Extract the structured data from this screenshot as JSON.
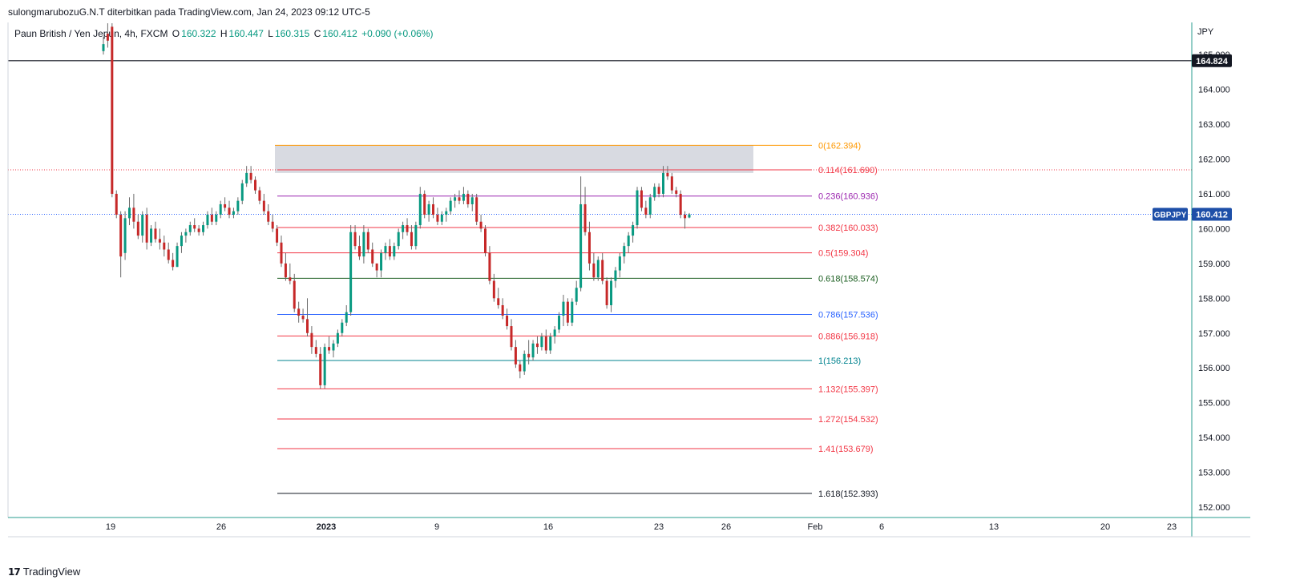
{
  "header": {
    "publisher_line": "sulongmarubozuG.N.T diterbitkan pada TradingView.com, Jan 24, 2023 09:12 UTC-5"
  },
  "legend": {
    "symbol_desc": "Paun British / Yen Jepun, 4h, FXCM",
    "open_label": "O",
    "open": "160.322",
    "high_label": "H",
    "high": "160.447",
    "low_label": "L",
    "low": "160.315",
    "close_label": "C",
    "close": "160.412",
    "change": "+0.090 (+0.06%)"
  },
  "footer": {
    "brand_mark": "17",
    "brand": "TradingView"
  },
  "chart_data": {
    "type": "candlestick",
    "symbol": "GBPJPY",
    "currency": "JPY",
    "y_range": [
      151.6,
      165.9
    ],
    "y_ticks": [
      "152.000",
      "153.000",
      "154.000",
      "155.000",
      "156.000",
      "157.000",
      "158.000",
      "159.000",
      "160.000",
      "161.000",
      "162.000",
      "163.000",
      "164.000",
      "165.000"
    ],
    "x_ticks": [
      "19",
      "26",
      "2023",
      "9",
      "16",
      "23",
      "26",
      "Feb",
      "6",
      "13",
      "20",
      "23"
    ],
    "price_labels": {
      "horizontal_level": "164.824",
      "last_price": "160.412",
      "last_symbol": "GBPJPY"
    },
    "horizontal_level": 164.824,
    "last_price": 160.412,
    "resistance_zone": {
      "from": 161.6,
      "to": 162.394,
      "color": "#d1d4dc"
    },
    "fib_levels": [
      {
        "label": "0(162.394)",
        "ratio": 0,
        "price": 162.394,
        "color": "#ff9800"
      },
      {
        "label": "0.114(161.690)",
        "ratio": 0.114,
        "price": 161.69,
        "color": "#f23645"
      },
      {
        "label": "0.236(160.936)",
        "ratio": 0.236,
        "price": 160.936,
        "color": "#9c27b0"
      },
      {
        "label": "0.382(160.033)",
        "ratio": 0.382,
        "price": 160.033,
        "color": "#f23645"
      },
      {
        "label": "0.5(159.304)",
        "ratio": 0.5,
        "price": 159.304,
        "color": "#f23645"
      },
      {
        "label": "0.618(158.574)",
        "ratio": 0.618,
        "price": 158.574,
        "color": "#1b5e20"
      },
      {
        "label": "0.786(157.536)",
        "ratio": 0.786,
        "price": 157.536,
        "color": "#2962ff"
      },
      {
        "label": "0.886(156.918)",
        "ratio": 0.886,
        "price": 156.918,
        "color": "#f23645"
      },
      {
        "label": "1(156.213)",
        "ratio": 1,
        "price": 156.213,
        "color": "#00838f"
      },
      {
        "label": "1.132(155.397)",
        "ratio": 1.132,
        "price": 155.397,
        "color": "#f23645"
      },
      {
        "label": "1.272(154.532)",
        "ratio": 1.272,
        "price": 154.532,
        "color": "#f23645"
      },
      {
        "label": "1.41(153.679)",
        "ratio": 1.41,
        "price": 153.679,
        "color": "#f23645"
      },
      {
        "label": "1.618(152.393)",
        "ratio": 1.618,
        "price": 152.393,
        "color": "#131722"
      }
    ],
    "colors": {
      "up": "#089981",
      "down": "#c62828",
      "wick": "#6b6b6b",
      "grid_border": "#b2b5be"
    },
    "candles": [
      {
        "o": 165.1,
        "h": 165.5,
        "l": 165.0,
        "c": 165.3
      },
      {
        "o": 165.6,
        "h": 165.9,
        "l": 165.2,
        "c": 165.4
      },
      {
        "o": 165.8,
        "h": 165.9,
        "l": 160.9,
        "c": 161.0
      },
      {
        "o": 161.0,
        "h": 161.1,
        "l": 160.3,
        "c": 160.4
      },
      {
        "o": 160.4,
        "h": 160.5,
        "l": 158.6,
        "c": 159.2
      },
      {
        "o": 159.3,
        "h": 160.5,
        "l": 159.1,
        "c": 160.3
      },
      {
        "o": 160.3,
        "h": 160.9,
        "l": 160.1,
        "c": 160.6
      },
      {
        "o": 160.6,
        "h": 161.0,
        "l": 160.0,
        "c": 160.2
      },
      {
        "o": 160.2,
        "h": 160.4,
        "l": 159.7,
        "c": 159.8
      },
      {
        "o": 159.8,
        "h": 160.5,
        "l": 159.6,
        "c": 160.4
      },
      {
        "o": 160.4,
        "h": 160.6,
        "l": 159.4,
        "c": 159.6
      },
      {
        "o": 159.6,
        "h": 160.1,
        "l": 159.5,
        "c": 160.0
      },
      {
        "o": 160.0,
        "h": 160.2,
        "l": 159.6,
        "c": 159.7
      },
      {
        "o": 159.7,
        "h": 160.0,
        "l": 159.4,
        "c": 159.6
      },
      {
        "o": 159.6,
        "h": 159.8,
        "l": 159.2,
        "c": 159.4
      },
      {
        "o": 159.4,
        "h": 159.6,
        "l": 159.0,
        "c": 159.1
      },
      {
        "o": 159.1,
        "h": 159.3,
        "l": 158.8,
        "c": 158.9
      },
      {
        "o": 158.9,
        "h": 159.6,
        "l": 158.9,
        "c": 159.5
      },
      {
        "o": 159.5,
        "h": 159.9,
        "l": 159.3,
        "c": 159.8
      },
      {
        "o": 159.8,
        "h": 160.0,
        "l": 159.6,
        "c": 159.9
      },
      {
        "o": 159.9,
        "h": 160.2,
        "l": 159.8,
        "c": 160.1
      },
      {
        "o": 160.1,
        "h": 160.3,
        "l": 159.9,
        "c": 160.0
      },
      {
        "o": 160.0,
        "h": 160.1,
        "l": 159.8,
        "c": 159.9
      },
      {
        "o": 159.9,
        "h": 160.2,
        "l": 159.8,
        "c": 160.1
      },
      {
        "o": 160.1,
        "h": 160.5,
        "l": 160.0,
        "c": 160.4
      },
      {
        "o": 160.4,
        "h": 160.6,
        "l": 160.1,
        "c": 160.2
      },
      {
        "o": 160.2,
        "h": 160.5,
        "l": 160.1,
        "c": 160.4
      },
      {
        "o": 160.4,
        "h": 160.8,
        "l": 160.3,
        "c": 160.7
      },
      {
        "o": 160.7,
        "h": 160.9,
        "l": 160.5,
        "c": 160.6
      },
      {
        "o": 160.6,
        "h": 160.8,
        "l": 160.3,
        "c": 160.4
      },
      {
        "o": 160.4,
        "h": 160.6,
        "l": 160.3,
        "c": 160.5
      },
      {
        "o": 160.5,
        "h": 160.9,
        "l": 160.4,
        "c": 160.8
      },
      {
        "o": 160.8,
        "h": 161.4,
        "l": 160.7,
        "c": 161.3
      },
      {
        "o": 161.3,
        "h": 161.8,
        "l": 161.2,
        "c": 161.6
      },
      {
        "o": 161.6,
        "h": 161.8,
        "l": 161.3,
        "c": 161.4
      },
      {
        "o": 161.4,
        "h": 161.5,
        "l": 161.0,
        "c": 161.1
      },
      {
        "o": 161.1,
        "h": 161.2,
        "l": 160.7,
        "c": 160.8
      },
      {
        "o": 160.8,
        "h": 161.0,
        "l": 160.4,
        "c": 160.5
      },
      {
        "o": 160.5,
        "h": 160.7,
        "l": 160.1,
        "c": 160.2
      },
      {
        "o": 160.2,
        "h": 160.4,
        "l": 159.9,
        "c": 160.0
      },
      {
        "o": 160.0,
        "h": 160.1,
        "l": 159.5,
        "c": 159.6
      },
      {
        "o": 159.6,
        "h": 159.8,
        "l": 158.9,
        "c": 159.0
      },
      {
        "o": 159.0,
        "h": 159.3,
        "l": 158.5,
        "c": 158.6
      },
      {
        "o": 158.6,
        "h": 159.0,
        "l": 158.4,
        "c": 158.5
      },
      {
        "o": 158.5,
        "h": 158.7,
        "l": 157.6,
        "c": 157.7
      },
      {
        "o": 157.7,
        "h": 157.9,
        "l": 157.3,
        "c": 157.5
      },
      {
        "o": 157.5,
        "h": 157.7,
        "l": 157.3,
        "c": 157.4
      },
      {
        "o": 157.4,
        "h": 158.0,
        "l": 156.9,
        "c": 157.0
      },
      {
        "o": 157.0,
        "h": 157.2,
        "l": 156.4,
        "c": 156.6
      },
      {
        "o": 156.6,
        "h": 156.8,
        "l": 156.3,
        "c": 156.4
      },
      {
        "o": 156.4,
        "h": 156.6,
        "l": 155.4,
        "c": 155.5
      },
      {
        "o": 155.5,
        "h": 156.7,
        "l": 155.4,
        "c": 156.6
      },
      {
        "o": 156.6,
        "h": 156.9,
        "l": 156.4,
        "c": 156.5
      },
      {
        "o": 156.5,
        "h": 156.8,
        "l": 156.3,
        "c": 156.7
      },
      {
        "o": 156.7,
        "h": 157.1,
        "l": 156.6,
        "c": 157.0
      },
      {
        "o": 157.0,
        "h": 157.4,
        "l": 156.9,
        "c": 157.3
      },
      {
        "o": 157.3,
        "h": 157.8,
        "l": 157.2,
        "c": 157.6
      },
      {
        "o": 157.6,
        "h": 160.1,
        "l": 157.5,
        "c": 159.9
      },
      {
        "o": 159.9,
        "h": 160.1,
        "l": 159.4,
        "c": 159.5
      },
      {
        "o": 159.5,
        "h": 159.8,
        "l": 159.1,
        "c": 159.2
      },
      {
        "o": 159.2,
        "h": 160.1,
        "l": 159.0,
        "c": 159.9
      },
      {
        "o": 159.9,
        "h": 160.0,
        "l": 159.3,
        "c": 159.4
      },
      {
        "o": 159.4,
        "h": 159.6,
        "l": 158.9,
        "c": 159.0
      },
      {
        "o": 159.0,
        "h": 158.9,
        "l": 158.6,
        "c": 158.8
      },
      {
        "o": 158.8,
        "h": 159.4,
        "l": 158.6,
        "c": 159.3
      },
      {
        "o": 159.3,
        "h": 159.6,
        "l": 159.1,
        "c": 159.5
      },
      {
        "o": 159.5,
        "h": 159.7,
        "l": 159.1,
        "c": 159.2
      },
      {
        "o": 159.2,
        "h": 159.6,
        "l": 159.1,
        "c": 159.5
      },
      {
        "o": 159.5,
        "h": 160.0,
        "l": 159.4,
        "c": 159.9
      },
      {
        "o": 159.9,
        "h": 160.2,
        "l": 159.7,
        "c": 160.1
      },
      {
        "o": 160.1,
        "h": 160.3,
        "l": 159.8,
        "c": 159.9
      },
      {
        "o": 159.9,
        "h": 160.1,
        "l": 159.4,
        "c": 159.5
      },
      {
        "o": 159.5,
        "h": 160.2,
        "l": 159.4,
        "c": 160.1
      },
      {
        "o": 160.1,
        "h": 161.2,
        "l": 160.0,
        "c": 161.0
      },
      {
        "o": 161.0,
        "h": 161.1,
        "l": 160.3,
        "c": 160.4
      },
      {
        "o": 160.4,
        "h": 160.8,
        "l": 160.2,
        "c": 160.7
      },
      {
        "o": 160.7,
        "h": 160.9,
        "l": 160.3,
        "c": 160.4
      },
      {
        "o": 160.4,
        "h": 160.6,
        "l": 160.1,
        "c": 160.2
      },
      {
        "o": 160.2,
        "h": 160.5,
        "l": 160.1,
        "c": 160.4
      },
      {
        "o": 160.4,
        "h": 160.6,
        "l": 160.2,
        "c": 160.5
      },
      {
        "o": 160.5,
        "h": 160.9,
        "l": 160.4,
        "c": 160.8
      },
      {
        "o": 160.8,
        "h": 161.0,
        "l": 160.6,
        "c": 160.9
      },
      {
        "o": 160.9,
        "h": 161.1,
        "l": 160.7,
        "c": 160.8
      },
      {
        "o": 160.8,
        "h": 161.2,
        "l": 160.7,
        "c": 161.0
      },
      {
        "o": 161.0,
        "h": 161.1,
        "l": 160.6,
        "c": 160.7
      },
      {
        "o": 160.7,
        "h": 161.0,
        "l": 160.5,
        "c": 160.9
      },
      {
        "o": 160.9,
        "h": 161.0,
        "l": 160.1,
        "c": 160.2
      },
      {
        "o": 160.2,
        "h": 160.4,
        "l": 159.9,
        "c": 160.0
      },
      {
        "o": 160.0,
        "h": 160.1,
        "l": 159.2,
        "c": 159.3
      },
      {
        "o": 159.3,
        "h": 159.5,
        "l": 158.4,
        "c": 158.5
      },
      {
        "o": 158.5,
        "h": 158.7,
        "l": 157.9,
        "c": 158.0
      },
      {
        "o": 158.0,
        "h": 158.3,
        "l": 157.7,
        "c": 157.8
      },
      {
        "o": 157.8,
        "h": 158.0,
        "l": 157.4,
        "c": 157.5
      },
      {
        "o": 157.5,
        "h": 157.7,
        "l": 157.1,
        "c": 157.2
      },
      {
        "o": 157.2,
        "h": 157.4,
        "l": 156.5,
        "c": 156.6
      },
      {
        "o": 156.6,
        "h": 156.8,
        "l": 156.0,
        "c": 156.1
      },
      {
        "o": 156.1,
        "h": 156.2,
        "l": 155.7,
        "c": 155.9
      },
      {
        "o": 155.9,
        "h": 156.5,
        "l": 155.8,
        "c": 156.4
      },
      {
        "o": 156.4,
        "h": 156.8,
        "l": 156.1,
        "c": 156.3
      },
      {
        "o": 156.3,
        "h": 156.8,
        "l": 156.2,
        "c": 156.7
      },
      {
        "o": 156.7,
        "h": 156.9,
        "l": 156.4,
        "c": 156.6
      },
      {
        "o": 156.6,
        "h": 157.0,
        "l": 156.5,
        "c": 156.9
      },
      {
        "o": 156.9,
        "h": 157.1,
        "l": 156.4,
        "c": 156.5
      },
      {
        "o": 156.5,
        "h": 157.0,
        "l": 156.4,
        "c": 156.9
      },
      {
        "o": 156.9,
        "h": 157.2,
        "l": 156.7,
        "c": 157.1
      },
      {
        "o": 157.1,
        "h": 157.6,
        "l": 157.0,
        "c": 157.5
      },
      {
        "o": 157.5,
        "h": 158.1,
        "l": 157.2,
        "c": 157.9
      },
      {
        "o": 157.9,
        "h": 158.0,
        "l": 157.2,
        "c": 157.3
      },
      {
        "o": 157.3,
        "h": 158.0,
        "l": 157.2,
        "c": 157.9
      },
      {
        "o": 157.9,
        "h": 158.5,
        "l": 157.8,
        "c": 158.3
      },
      {
        "o": 158.3,
        "h": 161.5,
        "l": 158.2,
        "c": 160.7
      },
      {
        "o": 160.7,
        "h": 161.2,
        "l": 159.8,
        "c": 159.9
      },
      {
        "o": 159.9,
        "h": 160.2,
        "l": 158.8,
        "c": 159.0
      },
      {
        "o": 159.0,
        "h": 159.3,
        "l": 158.5,
        "c": 158.6
      },
      {
        "o": 158.6,
        "h": 159.2,
        "l": 158.5,
        "c": 159.1
      },
      {
        "o": 159.1,
        "h": 159.3,
        "l": 158.4,
        "c": 158.5
      },
      {
        "o": 158.5,
        "h": 158.6,
        "l": 157.7,
        "c": 157.8
      },
      {
        "o": 157.8,
        "h": 158.6,
        "l": 157.6,
        "c": 158.5
      },
      {
        "o": 158.5,
        "h": 158.9,
        "l": 158.3,
        "c": 158.8
      },
      {
        "o": 158.8,
        "h": 159.3,
        "l": 158.6,
        "c": 159.2
      },
      {
        "o": 159.2,
        "h": 159.6,
        "l": 159.0,
        "c": 159.5
      },
      {
        "o": 159.5,
        "h": 159.9,
        "l": 159.3,
        "c": 159.8
      },
      {
        "o": 159.8,
        "h": 160.2,
        "l": 159.6,
        "c": 160.1
      },
      {
        "o": 160.1,
        "h": 161.2,
        "l": 160.0,
        "c": 161.1
      },
      {
        "o": 161.1,
        "h": 161.2,
        "l": 160.5,
        "c": 160.6
      },
      {
        "o": 160.6,
        "h": 160.8,
        "l": 160.3,
        "c": 160.4
      },
      {
        "o": 160.4,
        "h": 161.0,
        "l": 160.3,
        "c": 160.9
      },
      {
        "o": 160.9,
        "h": 161.3,
        "l": 160.8,
        "c": 161.2
      },
      {
        "o": 161.2,
        "h": 161.3,
        "l": 160.9,
        "c": 161.0
      },
      {
        "o": 161.0,
        "h": 161.8,
        "l": 160.9,
        "c": 161.6
      },
      {
        "o": 161.6,
        "h": 161.8,
        "l": 161.4,
        "c": 161.5
      },
      {
        "o": 161.5,
        "h": 161.6,
        "l": 161.0,
        "c": 161.1
      },
      {
        "o": 161.1,
        "h": 161.2,
        "l": 160.9,
        "c": 161.0
      },
      {
        "o": 161.0,
        "h": 161.1,
        "l": 160.3,
        "c": 160.4
      },
      {
        "o": 160.4,
        "h": 160.5,
        "l": 160.0,
        "c": 160.3
      },
      {
        "o": 160.32,
        "h": 160.45,
        "l": 160.3,
        "c": 160.41
      }
    ]
  }
}
